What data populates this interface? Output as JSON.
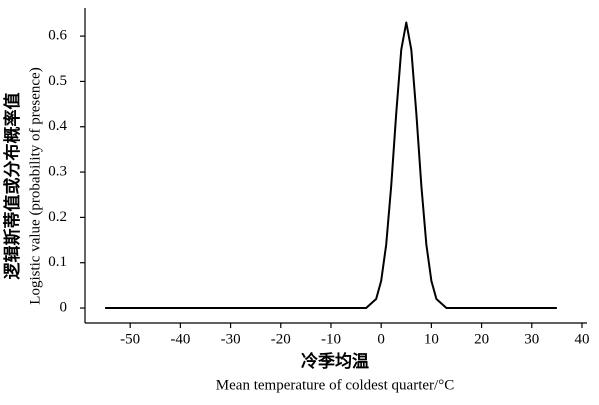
{
  "chart_data": {
    "type": "line",
    "ylabel": [
      "逻辑斯蒂值或分布概率值",
      "Logistic value (probability of presence)"
    ],
    "xlabel": [
      "冷季均温",
      "Mean temperature of coldest quarter/°C"
    ],
    "x": [
      -55,
      -10,
      -5,
      -3,
      -2,
      -1,
      0,
      1,
      2,
      3,
      4,
      5,
      6,
      7,
      8,
      9,
      10,
      11,
      12,
      13,
      15,
      20,
      35
    ],
    "series": [
      {
        "color": "#000000",
        "values": [
          0,
          0,
          0,
          0,
          0.01,
          0.02,
          0.06,
          0.14,
          0.27,
          0.43,
          0.57,
          0.63,
          0.57,
          0.43,
          0.27,
          0.14,
          0.06,
          0.02,
          0.01,
          0,
          0,
          0,
          0
        ]
      }
    ],
    "xlim": [
      -59,
      41
    ],
    "ylim": [
      -0.033,
      0.662
    ],
    "xticks": [
      -50,
      -40,
      -30,
      -20,
      -10,
      0,
      10,
      20,
      30,
      40
    ],
    "yticks": [
      0,
      0.1,
      0.2,
      0.3,
      0.4,
      0.5,
      0.6
    ]
  }
}
